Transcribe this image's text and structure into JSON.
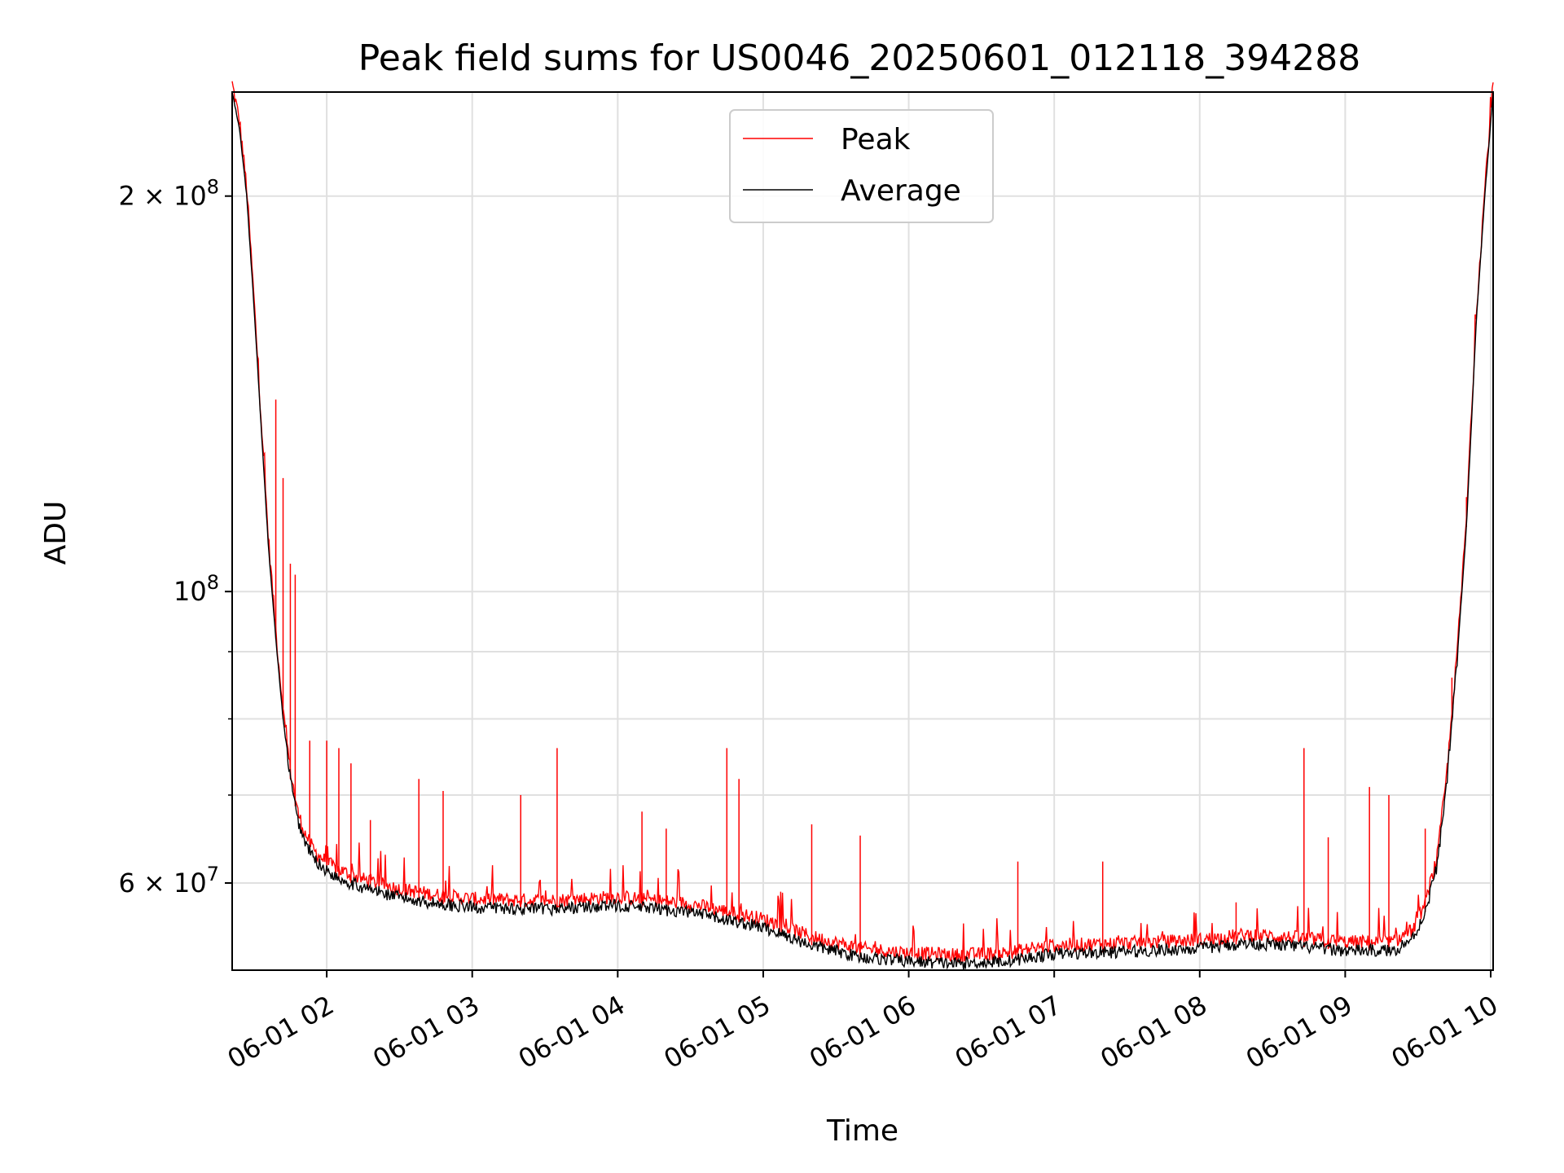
{
  "chart_data": {
    "type": "line",
    "title": "Peak field sums for US0046_20250601_012118_394288",
    "xlabel": "Time",
    "ylabel": "ADU",
    "y_scale": "log",
    "grid": true,
    "legend_position": "top-center",
    "x_range": [
      "2025-06-01 01:21",
      "2025-06-01 10:01"
    ],
    "ylim": [
      51500000,
      240000000
    ],
    "x_ticks": [
      {
        "t": "2025-06-01 02:00",
        "label": "06-01 02"
      },
      {
        "t": "2025-06-01 03:00",
        "label": "06-01 03"
      },
      {
        "t": "2025-06-01 04:00",
        "label": "06-01 04"
      },
      {
        "t": "2025-06-01 05:00",
        "label": "06-01 05"
      },
      {
        "t": "2025-06-01 06:00",
        "label": "06-01 06"
      },
      {
        "t": "2025-06-01 07:00",
        "label": "06-01 07"
      },
      {
        "t": "2025-06-01 08:00",
        "label": "06-01 08"
      },
      {
        "t": "2025-06-01 09:00",
        "label": "06-01 09"
      },
      {
        "t": "2025-06-01 10:00",
        "label": "06-01 10"
      }
    ],
    "y_ticks_major": [
      {
        "value": 200000000,
        "mantissa": "2",
        "exp": "8"
      },
      {
        "value": 100000000,
        "mantissa": "",
        "exp": "8"
      },
      {
        "value": 60000000,
        "mantissa": "6",
        "exp": "7"
      }
    ],
    "y_ticks_minor": [
      90000000,
      80000000,
      70000000
    ],
    "series": [
      {
        "name": "Average",
        "color": "#000000",
        "t": [
          "2025-06-01 01:21",
          "2025-06-01 01:24",
          "2025-06-01 01:27",
          "2025-06-01 01:30",
          "2025-06-01 01:33",
          "2025-06-01 01:36",
          "2025-06-01 01:39",
          "2025-06-01 01:42",
          "2025-06-01 01:45",
          "2025-06-01 01:48",
          "2025-06-01 01:51",
          "2025-06-01 01:55",
          "2025-06-01 02:00",
          "2025-06-01 02:05",
          "2025-06-01 02:15",
          "2025-06-01 02:30",
          "2025-06-01 02:45",
          "2025-06-01 03:00",
          "2025-06-01 03:30",
          "2025-06-01 04:00",
          "2025-06-01 04:30",
          "2025-06-01 05:00",
          "2025-06-01 05:20",
          "2025-06-01 05:40",
          "2025-06-01 06:00",
          "2025-06-01 06:20",
          "2025-06-01 06:40",
          "2025-06-01 07:00",
          "2025-06-01 07:30",
          "2025-06-01 08:00",
          "2025-06-01 08:20",
          "2025-06-01 08:40",
          "2025-06-01 09:00",
          "2025-06-01 09:20",
          "2025-06-01 09:28",
          "2025-06-01 09:33",
          "2025-06-01 09:38",
          "2025-06-01 09:42",
          "2025-06-01 09:46",
          "2025-06-01 09:50",
          "2025-06-01 09:54",
          "2025-06-01 09:58",
          "2025-06-01 10:01"
        ],
        "values": [
          240000000,
          225000000,
          200000000,
          165000000,
          133000000,
          108000000,
          92000000,
          80000000,
          72000000,
          67000000,
          64500000,
          62500000,
          61300000,
          60500000,
          59500000,
          58500000,
          57900000,
          57500000,
          57300000,
          57700000,
          57000000,
          55500000,
          53800000,
          52700000,
          52300000,
          52100000,
          52300000,
          53000000,
          53200000,
          53500000,
          54000000,
          53700000,
          53300000,
          53300000,
          54500000,
          57000000,
          62000000,
          72000000,
          88000000,
          112000000,
          160000000,
          205000000,
          240000000
        ]
      },
      {
        "name": "Peak",
        "color": "#ff0000",
        "spikes": [
          {
            "t": "2025-06-01 01:39",
            "value": 140000000
          },
          {
            "t": "2025-06-01 01:42",
            "value": 122000000
          },
          {
            "t": "2025-06-01 01:45",
            "value": 105000000
          },
          {
            "t": "2025-06-01 01:47",
            "value": 103000000
          },
          {
            "t": "2025-06-01 01:53",
            "value": 77000000
          },
          {
            "t": "2025-06-01 02:00",
            "value": 77000000
          },
          {
            "t": "2025-06-01 02:05",
            "value": 76000000
          },
          {
            "t": "2025-06-01 02:10",
            "value": 74000000
          },
          {
            "t": "2025-06-01 02:18",
            "value": 67000000
          },
          {
            "t": "2025-06-01 02:38",
            "value": 72000000
          },
          {
            "t": "2025-06-01 02:48",
            "value": 70500000
          },
          {
            "t": "2025-06-01 03:20",
            "value": 70000000
          },
          {
            "t": "2025-06-01 03:35",
            "value": 76000000
          },
          {
            "t": "2025-06-01 04:10",
            "value": 68000000
          },
          {
            "t": "2025-06-01 04:20",
            "value": 66000000
          },
          {
            "t": "2025-06-01 04:45",
            "value": 76000000
          },
          {
            "t": "2025-06-01 04:50",
            "value": 72000000
          },
          {
            "t": "2025-06-01 05:20",
            "value": 66500000
          },
          {
            "t": "2025-06-01 05:40",
            "value": 65200000
          },
          {
            "t": "2025-06-01 06:45",
            "value": 62300000
          },
          {
            "t": "2025-06-01 07:20",
            "value": 62300000
          },
          {
            "t": "2025-06-01 08:15",
            "value": 58000000
          },
          {
            "t": "2025-06-01 08:43",
            "value": 76000000
          },
          {
            "t": "2025-06-01 08:53",
            "value": 65000000
          },
          {
            "t": "2025-06-01 09:10",
            "value": 71000000
          },
          {
            "t": "2025-06-01 09:18",
            "value": 70000000
          },
          {
            "t": "2025-06-01 09:33",
            "value": 66000000
          },
          {
            "t": "2025-06-01 09:44",
            "value": 86000000
          },
          {
            "t": "2025-06-01 09:50",
            "value": 118000000
          }
        ]
      }
    ],
    "legend": [
      {
        "label": "Peak",
        "color": "#ff0000"
      },
      {
        "label": "Average",
        "color": "#000000"
      }
    ]
  }
}
